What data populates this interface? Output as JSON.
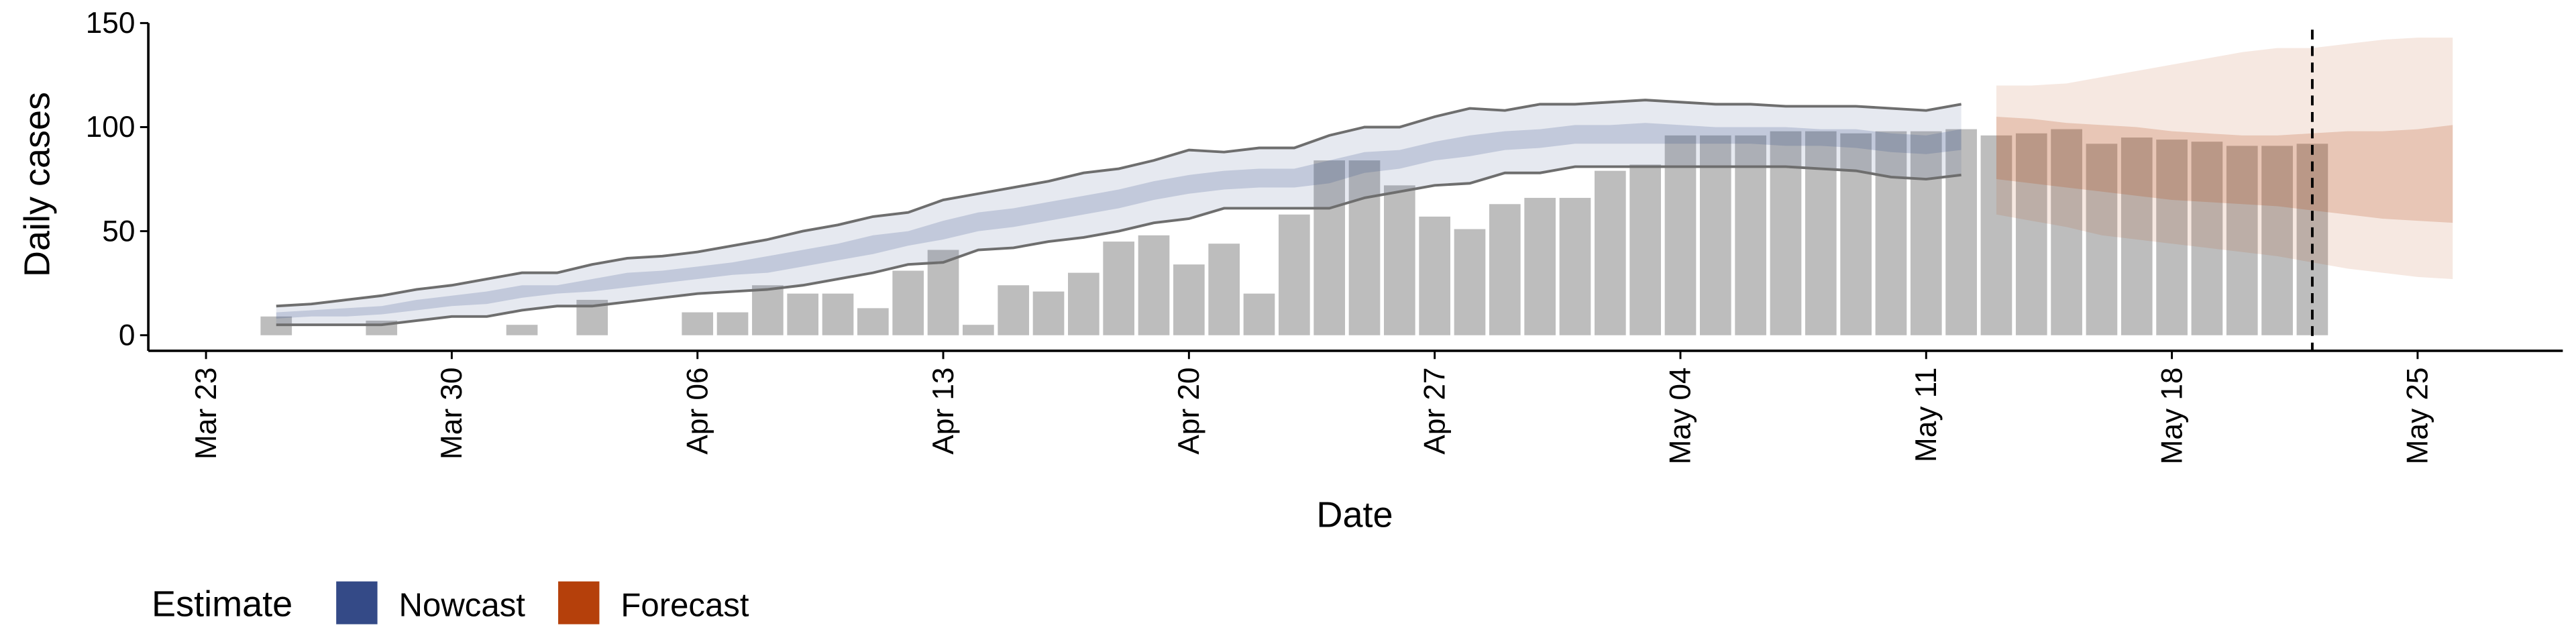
{
  "chart_data": {
    "type": "bar_ribbon",
    "x_label": "Date",
    "y_label": "Daily cases",
    "legend_title": "Estimate",
    "categories": [
      "Mar 23",
      null,
      null,
      null,
      null,
      null,
      null,
      "Mar 30",
      null,
      null,
      null,
      null,
      null,
      null,
      "Apr 06",
      null,
      null,
      null,
      null,
      null,
      null,
      "Apr 13",
      null,
      null,
      null,
      null,
      null,
      null,
      "Apr 20",
      null,
      null,
      null,
      null,
      null,
      null,
      "Apr 27",
      null,
      null,
      null,
      null,
      null,
      null,
      "May 04",
      null,
      null,
      null,
      null,
      null,
      null,
      "May 11",
      null,
      null,
      null,
      null,
      null,
      null,
      "May 18",
      null,
      null,
      null,
      null,
      null,
      null,
      "May 25",
      null
    ],
    "ylim": [
      -7.5,
      150
    ],
    "yticks": [
      0,
      50,
      100,
      150
    ],
    "vline_x": 60,
    "bars": {
      "color": "#bdbdbd",
      "values": [
        null,
        null,
        9,
        0,
        0,
        7,
        0,
        0,
        0,
        5,
        0,
        17,
        0,
        0,
        11,
        11,
        24,
        20,
        20,
        13,
        31,
        41,
        5,
        24,
        21,
        30,
        45,
        48,
        34,
        44,
        20,
        58,
        84,
        84,
        72,
        57,
        51,
        63,
        66,
        66,
        79,
        82,
        96,
        96,
        96,
        98,
        98,
        97,
        98,
        98,
        99,
        96,
        97,
        99,
        92,
        95,
        94,
        93,
        91,
        91,
        92,
        null,
        null,
        null,
        null
      ]
    },
    "series": [
      {
        "name": "Nowcast",
        "color": "#344a87",
        "outline_color": "#6e6e6e",
        "bands": [
          {
            "lower": [
              null,
              null,
              5,
              5,
              5,
              5,
              7,
              9,
              9,
              12,
              14,
              14,
              16,
              18,
              20,
              21,
              22,
              24,
              27,
              30,
              34,
              35,
              41,
              42,
              45,
              47,
              50,
              54,
              56,
              61,
              61,
              61,
              61,
              66,
              69,
              72,
              73,
              78,
              78,
              81,
              81,
              81,
              81,
              81,
              81,
              81,
              80,
              79,
              76,
              75,
              77,
              null,
              null,
              null,
              null,
              null,
              null,
              null,
              null,
              null,
              null,
              null,
              null,
              null,
              null
            ],
            "upper": [
              null,
              null,
              14,
              15,
              17,
              19,
              22,
              24,
              27,
              30,
              30,
              34,
              37,
              38,
              40,
              43,
              46,
              50,
              53,
              57,
              59,
              65,
              68,
              71,
              74,
              78,
              80,
              84,
              89,
              88,
              90,
              90,
              96,
              100,
              100,
              105,
              109,
              108,
              111,
              111,
              112,
              113,
              112,
              111,
              111,
              110,
              110,
              110,
              109,
              108,
              111,
              null,
              null,
              null,
              null,
              null,
              null,
              null,
              null,
              null,
              null,
              null,
              null,
              null,
              null
            ]
          },
          {
            "lower": [
              null,
              null,
              8,
              9,
              9,
              10,
              12,
              14,
              15,
              18,
              20,
              21,
              23,
              25,
              27,
              29,
              30,
              33,
              36,
              39,
              43,
              46,
              50,
              52,
              55,
              58,
              61,
              65,
              68,
              70,
              71,
              71,
              73,
              78,
              80,
              84,
              86,
              89,
              90,
              92,
              92,
              92,
              92,
              92,
              92,
              91,
              91,
              90,
              88,
              87,
              89,
              null,
              null,
              null,
              null,
              null,
              null,
              null,
              null,
              null,
              null,
              null,
              null,
              null,
              null
            ],
            "upper": [
              null,
              null,
              11,
              12,
              13,
              14,
              17,
              19,
              21,
              24,
              24,
              27,
              30,
              31,
              33,
              35,
              38,
              41,
              44,
              48,
              50,
              55,
              59,
              61,
              64,
              67,
              70,
              74,
              77,
              79,
              80,
              80,
              84,
              88,
              89,
              93,
              96,
              98,
              99,
              101,
              101,
              102,
              101,
              100,
              100,
              100,
              99,
              99,
              97,
              96,
              99,
              null,
              null,
              null,
              null,
              null,
              null,
              null,
              null,
              null,
              null,
              null,
              null,
              null,
              null
            ]
          }
        ]
      },
      {
        "name": "Forecast",
        "color": "#b5400b",
        "bands": [
          {
            "lower": [
              null,
              null,
              null,
              null,
              null,
              null,
              null,
              null,
              null,
              null,
              null,
              null,
              null,
              null,
              null,
              null,
              null,
              null,
              null,
              null,
              null,
              null,
              null,
              null,
              null,
              null,
              null,
              null,
              null,
              null,
              null,
              null,
              null,
              null,
              null,
              null,
              null,
              null,
              null,
              null,
              null,
              null,
              null,
              null,
              null,
              null,
              null,
              null,
              null,
              null,
              null,
              58,
              55,
              52,
              48,
              46,
              44,
              42,
              40,
              38,
              35,
              32,
              30,
              28,
              27
            ],
            "upper": [
              null,
              null,
              null,
              null,
              null,
              null,
              null,
              null,
              null,
              null,
              null,
              null,
              null,
              null,
              null,
              null,
              null,
              null,
              null,
              null,
              null,
              null,
              null,
              null,
              null,
              null,
              null,
              null,
              null,
              null,
              null,
              null,
              null,
              null,
              null,
              null,
              null,
              null,
              null,
              null,
              null,
              null,
              null,
              null,
              null,
              null,
              null,
              null,
              null,
              null,
              null,
              120,
              120,
              121,
              124,
              127,
              130,
              133,
              136,
              138,
              138,
              140,
              142,
              143,
              143
            ]
          },
          {
            "lower": [
              null,
              null,
              null,
              null,
              null,
              null,
              null,
              null,
              null,
              null,
              null,
              null,
              null,
              null,
              null,
              null,
              null,
              null,
              null,
              null,
              null,
              null,
              null,
              null,
              null,
              null,
              null,
              null,
              null,
              null,
              null,
              null,
              null,
              null,
              null,
              null,
              null,
              null,
              null,
              null,
              null,
              null,
              null,
              null,
              null,
              null,
              null,
              null,
              null,
              null,
              null,
              75,
              73,
              71,
              69,
              67,
              65,
              64,
              63,
              62,
              60,
              58,
              56,
              55,
              54
            ],
            "upper": [
              null,
              null,
              null,
              null,
              null,
              null,
              null,
              null,
              null,
              null,
              null,
              null,
              null,
              null,
              null,
              null,
              null,
              null,
              null,
              null,
              null,
              null,
              null,
              null,
              null,
              null,
              null,
              null,
              null,
              null,
              null,
              null,
              null,
              null,
              null,
              null,
              null,
              null,
              null,
              null,
              null,
              null,
              null,
              null,
              null,
              null,
              null,
              null,
              null,
              null,
              null,
              105,
              104,
              102,
              101,
              100,
              98,
              97,
              96,
              96,
              97,
              98,
              98,
              99,
              101
            ]
          }
        ]
      }
    ]
  }
}
